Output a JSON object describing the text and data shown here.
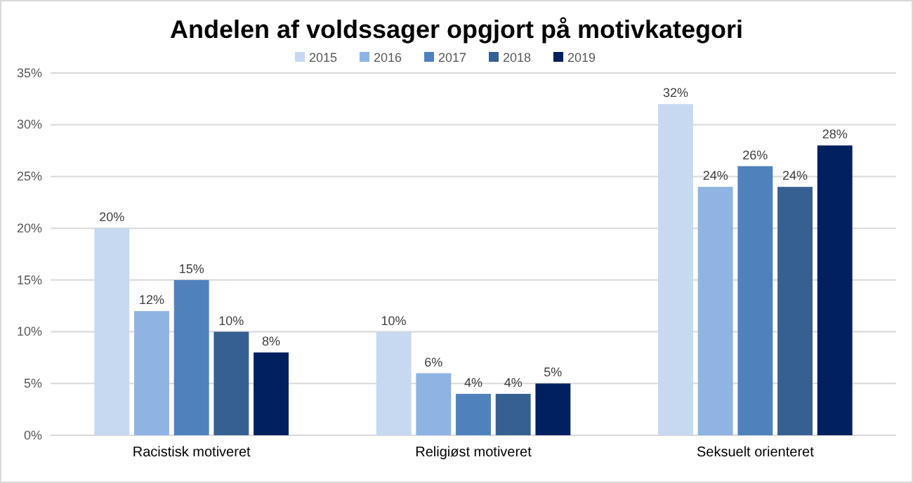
{
  "chart_data": {
    "type": "bar",
    "title": "Andelen af voldssager opgjort på motivkategori",
    "categories": [
      "Racistisk motiveret",
      "Religiøst motiveret",
      "Seksuelt orienteret"
    ],
    "series": [
      {
        "name": "2015",
        "color": "#c6d9f1",
        "values": [
          20,
          10,
          32
        ],
        "value_labels": [
          "20%",
          "10%",
          "32%"
        ]
      },
      {
        "name": "2016",
        "color": "#8eb4e3",
        "values": [
          12,
          6,
          24
        ],
        "value_labels": [
          "12%",
          "6%",
          "24%"
        ]
      },
      {
        "name": "2017",
        "color": "#4f81bd",
        "values": [
          15,
          4,
          26
        ],
        "value_labels": [
          "15%",
          "4%",
          "26%"
        ]
      },
      {
        "name": "2018",
        "color": "#366092",
        "values": [
          10,
          4,
          24
        ],
        "value_labels": [
          "10%",
          "4%",
          "24%"
        ]
      },
      {
        "name": "2019",
        "color": "#002060",
        "values": [
          8,
          5,
          28
        ],
        "value_labels": [
          "8%",
          "5%",
          "28%"
        ]
      }
    ],
    "ylim": [
      0,
      35
    ],
    "yticks": [
      {
        "value": 0,
        "label": "0%"
      },
      {
        "value": 5,
        "label": "5%"
      },
      {
        "value": 10,
        "label": "10%"
      },
      {
        "value": 15,
        "label": "15%"
      },
      {
        "value": 20,
        "label": "20%"
      },
      {
        "value": 25,
        "label": "25%"
      },
      {
        "value": 30,
        "label": "30%"
      },
      {
        "value": 35,
        "label": "35%"
      }
    ],
    "grid": "y",
    "legend": "top"
  }
}
